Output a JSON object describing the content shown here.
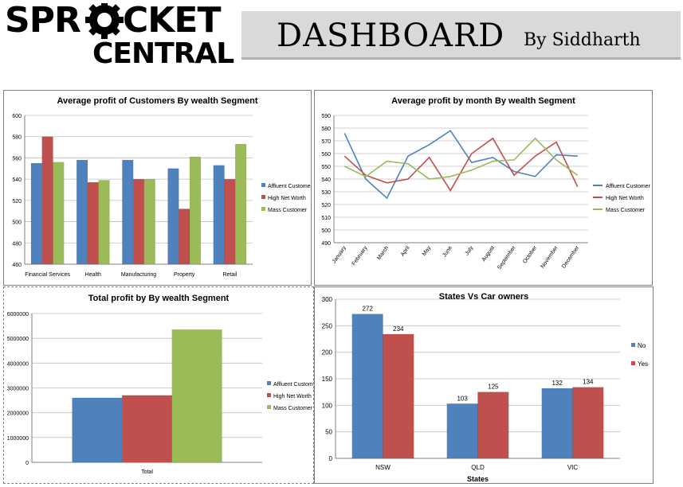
{
  "header": {
    "logo_line1": "SPR",
    "logo_line1b": "CKET",
    "logo_line2": "CENTRAL",
    "title": "DASHBOARD",
    "byline": "By Siddharth"
  },
  "colors": {
    "affluent": "#4f81bd",
    "high_net_worth": "#c0504d",
    "mass": "#9bbb59"
  },
  "chart_data": [
    {
      "type": "bar",
      "title": "Average profit of Customers By wealth Segment",
      "categories": [
        "Financial Services",
        "Health",
        "Manufacturing",
        "Property",
        "Retail"
      ],
      "series": [
        {
          "name": "Affluent Customer",
          "values": [
            555,
            558,
            558,
            550,
            553
          ]
        },
        {
          "name": "High Net Worth",
          "values": [
            580,
            537,
            540,
            512,
            540
          ]
        },
        {
          "name": "Mass Customer",
          "values": [
            556,
            539,
            540,
            561,
            573
          ]
        }
      ],
      "ylim": [
        460,
        600
      ],
      "yticks": [
        "460",
        "480",
        "500",
        "520",
        "540",
        "560",
        "580",
        "600"
      ],
      "legend": "right"
    },
    {
      "type": "line",
      "title": "Average profit by month By wealth Segment",
      "categories": [
        "January",
        "February",
        "March",
        "April",
        "May",
        "June",
        "July",
        "August",
        "September",
        "October",
        "November",
        "December"
      ],
      "series": [
        {
          "name": "Affluent Customer",
          "values": [
            576,
            540,
            525,
            558,
            567,
            578,
            553,
            557,
            546,
            542,
            559,
            558
          ]
        },
        {
          "name": "High Net Worth",
          "values": [
            558,
            543,
            537,
            540,
            557,
            531,
            560,
            572,
            543,
            558,
            569,
            534
          ]
        },
        {
          "name": "Mass Customer",
          "values": [
            550,
            542,
            554,
            552,
            540,
            542,
            547,
            554,
            555,
            572,
            555,
            543
          ]
        }
      ],
      "ylim": [
        490,
        590
      ],
      "yticks": [
        "490",
        "500",
        "510",
        "520",
        "530",
        "540",
        "550",
        "560",
        "570",
        "580",
        "590"
      ],
      "legend": "right"
    },
    {
      "type": "bar",
      "title": "Total profit by By wealth Segment",
      "categories": [
        "Total"
      ],
      "series": [
        {
          "name": "Affluent Customer",
          "values": [
            2600000
          ]
        },
        {
          "name": "High Net Worth",
          "values": [
            2700000
          ]
        },
        {
          "name": "Mass Customer",
          "values": [
            5350000
          ]
        }
      ],
      "ylim": [
        0,
        6000000
      ],
      "yticks": [
        "0",
        "1000000",
        "2000000",
        "3000000",
        "4000000",
        "5000000",
        "6000000"
      ],
      "legend": "right"
    },
    {
      "type": "bar",
      "title": "States Vs Car owners",
      "xlabel": "States",
      "categories": [
        "NSW",
        "QLD",
        "VIC"
      ],
      "series": [
        {
          "name": "No",
          "values": [
            272,
            103,
            132
          ],
          "labels": [
            "272",
            "103",
            "132"
          ]
        },
        {
          "name": "Yes",
          "values": [
            234,
            125,
            134
          ],
          "labels": [
            "234",
            "125",
            "134"
          ]
        }
      ],
      "ylim": [
        0,
        300
      ],
      "yticks": [
        "0",
        "50",
        "100",
        "150",
        "200",
        "250",
        "300"
      ],
      "legend": "right"
    }
  ]
}
